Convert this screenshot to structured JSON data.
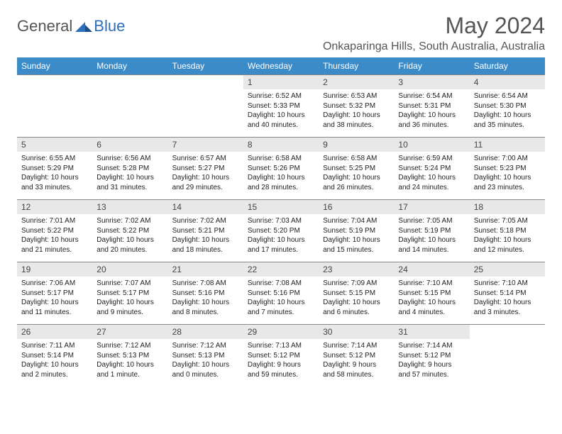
{
  "logo": {
    "general": "General",
    "blue": "Blue"
  },
  "title": "May 2024",
  "location": "Onkaparinga Hills, South Australia, Australia",
  "colors": {
    "header_bg": "#3b8bc9",
    "header_text": "#ffffff",
    "daynum_bg": "#e8e8e8",
    "border": "#888888",
    "title_text": "#555555",
    "body_text": "#222222",
    "logo_blue": "#2c6fbb"
  },
  "weekdays": [
    "Sunday",
    "Monday",
    "Tuesday",
    "Wednesday",
    "Thursday",
    "Friday",
    "Saturday"
  ],
  "weeks": [
    [
      {
        "day": "",
        "lines": []
      },
      {
        "day": "",
        "lines": []
      },
      {
        "day": "",
        "lines": []
      },
      {
        "day": "1",
        "lines": [
          "Sunrise: 6:52 AM",
          "Sunset: 5:33 PM",
          "Daylight: 10 hours",
          "and 40 minutes."
        ]
      },
      {
        "day": "2",
        "lines": [
          "Sunrise: 6:53 AM",
          "Sunset: 5:32 PM",
          "Daylight: 10 hours",
          "and 38 minutes."
        ]
      },
      {
        "day": "3",
        "lines": [
          "Sunrise: 6:54 AM",
          "Sunset: 5:31 PM",
          "Daylight: 10 hours",
          "and 36 minutes."
        ]
      },
      {
        "day": "4",
        "lines": [
          "Sunrise: 6:54 AM",
          "Sunset: 5:30 PM",
          "Daylight: 10 hours",
          "and 35 minutes."
        ]
      }
    ],
    [
      {
        "day": "5",
        "lines": [
          "Sunrise: 6:55 AM",
          "Sunset: 5:29 PM",
          "Daylight: 10 hours",
          "and 33 minutes."
        ]
      },
      {
        "day": "6",
        "lines": [
          "Sunrise: 6:56 AM",
          "Sunset: 5:28 PM",
          "Daylight: 10 hours",
          "and 31 minutes."
        ]
      },
      {
        "day": "7",
        "lines": [
          "Sunrise: 6:57 AM",
          "Sunset: 5:27 PM",
          "Daylight: 10 hours",
          "and 29 minutes."
        ]
      },
      {
        "day": "8",
        "lines": [
          "Sunrise: 6:58 AM",
          "Sunset: 5:26 PM",
          "Daylight: 10 hours",
          "and 28 minutes."
        ]
      },
      {
        "day": "9",
        "lines": [
          "Sunrise: 6:58 AM",
          "Sunset: 5:25 PM",
          "Daylight: 10 hours",
          "and 26 minutes."
        ]
      },
      {
        "day": "10",
        "lines": [
          "Sunrise: 6:59 AM",
          "Sunset: 5:24 PM",
          "Daylight: 10 hours",
          "and 24 minutes."
        ]
      },
      {
        "day": "11",
        "lines": [
          "Sunrise: 7:00 AM",
          "Sunset: 5:23 PM",
          "Daylight: 10 hours",
          "and 23 minutes."
        ]
      }
    ],
    [
      {
        "day": "12",
        "lines": [
          "Sunrise: 7:01 AM",
          "Sunset: 5:22 PM",
          "Daylight: 10 hours",
          "and 21 minutes."
        ]
      },
      {
        "day": "13",
        "lines": [
          "Sunrise: 7:02 AM",
          "Sunset: 5:22 PM",
          "Daylight: 10 hours",
          "and 20 minutes."
        ]
      },
      {
        "day": "14",
        "lines": [
          "Sunrise: 7:02 AM",
          "Sunset: 5:21 PM",
          "Daylight: 10 hours",
          "and 18 minutes."
        ]
      },
      {
        "day": "15",
        "lines": [
          "Sunrise: 7:03 AM",
          "Sunset: 5:20 PM",
          "Daylight: 10 hours",
          "and 17 minutes."
        ]
      },
      {
        "day": "16",
        "lines": [
          "Sunrise: 7:04 AM",
          "Sunset: 5:19 PM",
          "Daylight: 10 hours",
          "and 15 minutes."
        ]
      },
      {
        "day": "17",
        "lines": [
          "Sunrise: 7:05 AM",
          "Sunset: 5:19 PM",
          "Daylight: 10 hours",
          "and 14 minutes."
        ]
      },
      {
        "day": "18",
        "lines": [
          "Sunrise: 7:05 AM",
          "Sunset: 5:18 PM",
          "Daylight: 10 hours",
          "and 12 minutes."
        ]
      }
    ],
    [
      {
        "day": "19",
        "lines": [
          "Sunrise: 7:06 AM",
          "Sunset: 5:17 PM",
          "Daylight: 10 hours",
          "and 11 minutes."
        ]
      },
      {
        "day": "20",
        "lines": [
          "Sunrise: 7:07 AM",
          "Sunset: 5:17 PM",
          "Daylight: 10 hours",
          "and 9 minutes."
        ]
      },
      {
        "day": "21",
        "lines": [
          "Sunrise: 7:08 AM",
          "Sunset: 5:16 PM",
          "Daylight: 10 hours",
          "and 8 minutes."
        ]
      },
      {
        "day": "22",
        "lines": [
          "Sunrise: 7:08 AM",
          "Sunset: 5:16 PM",
          "Daylight: 10 hours",
          "and 7 minutes."
        ]
      },
      {
        "day": "23",
        "lines": [
          "Sunrise: 7:09 AM",
          "Sunset: 5:15 PM",
          "Daylight: 10 hours",
          "and 6 minutes."
        ]
      },
      {
        "day": "24",
        "lines": [
          "Sunrise: 7:10 AM",
          "Sunset: 5:15 PM",
          "Daylight: 10 hours",
          "and 4 minutes."
        ]
      },
      {
        "day": "25",
        "lines": [
          "Sunrise: 7:10 AM",
          "Sunset: 5:14 PM",
          "Daylight: 10 hours",
          "and 3 minutes."
        ]
      }
    ],
    [
      {
        "day": "26",
        "lines": [
          "Sunrise: 7:11 AM",
          "Sunset: 5:14 PM",
          "Daylight: 10 hours",
          "and 2 minutes."
        ]
      },
      {
        "day": "27",
        "lines": [
          "Sunrise: 7:12 AM",
          "Sunset: 5:13 PM",
          "Daylight: 10 hours",
          "and 1 minute."
        ]
      },
      {
        "day": "28",
        "lines": [
          "Sunrise: 7:12 AM",
          "Sunset: 5:13 PM",
          "Daylight: 10 hours",
          "and 0 minutes."
        ]
      },
      {
        "day": "29",
        "lines": [
          "Sunrise: 7:13 AM",
          "Sunset: 5:12 PM",
          "Daylight: 9 hours",
          "and 59 minutes."
        ]
      },
      {
        "day": "30",
        "lines": [
          "Sunrise: 7:14 AM",
          "Sunset: 5:12 PM",
          "Daylight: 9 hours",
          "and 58 minutes."
        ]
      },
      {
        "day": "31",
        "lines": [
          "Sunrise: 7:14 AM",
          "Sunset: 5:12 PM",
          "Daylight: 9 hours",
          "and 57 minutes."
        ]
      },
      {
        "day": "",
        "lines": []
      }
    ]
  ]
}
